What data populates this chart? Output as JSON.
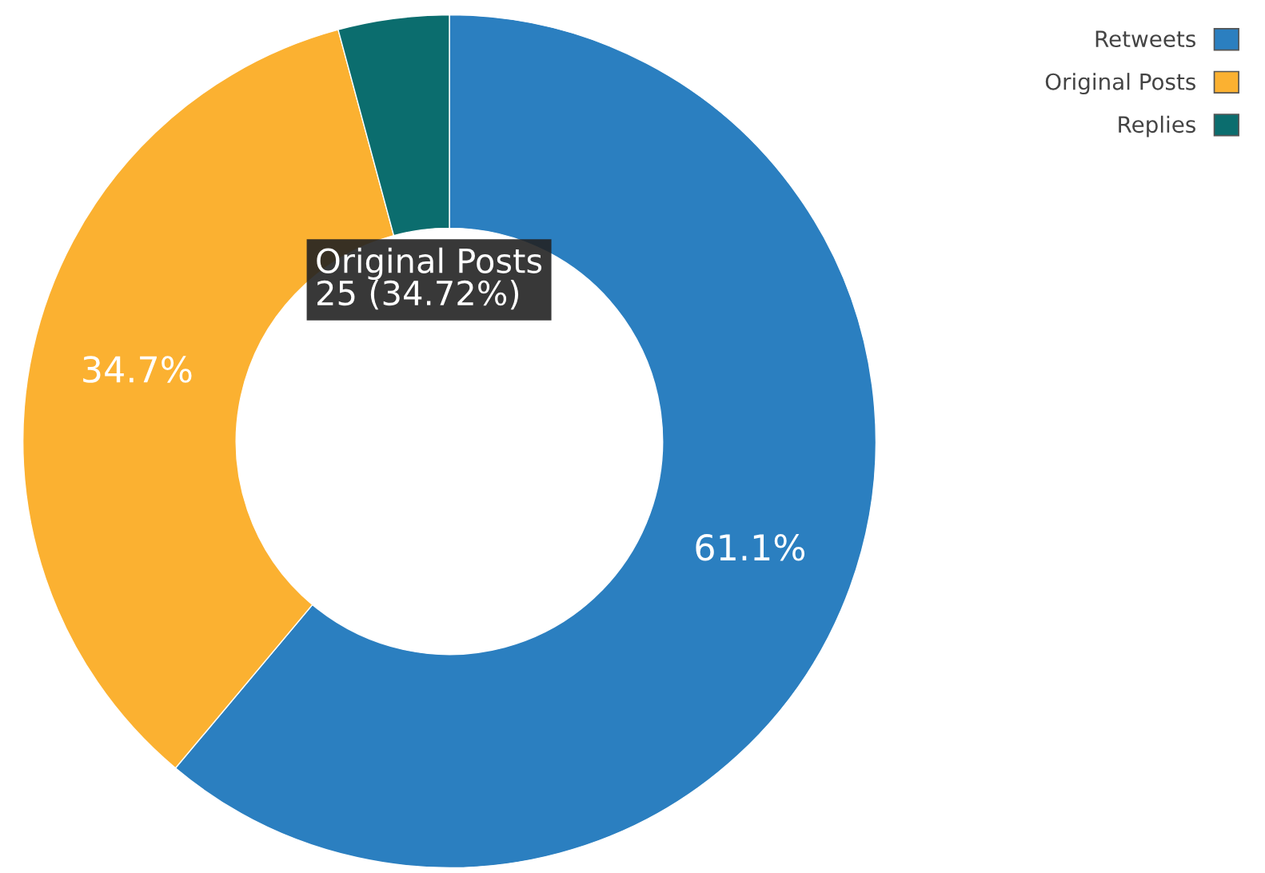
{
  "chart_data": {
    "type": "donut",
    "categories": [
      "Retweets",
      "Original Posts",
      "Replies"
    ],
    "values": [
      61.1,
      34.7,
      4.2
    ],
    "colors": [
      "#2b7fc0",
      "#fbb131",
      "#0b6d6e"
    ],
    "value_labels": [
      "61.1%",
      "34.7%",
      null
    ],
    "legend": "top right",
    "annotations": [
      "Original Posts\n25 (34.72%)"
    ]
  }
}
